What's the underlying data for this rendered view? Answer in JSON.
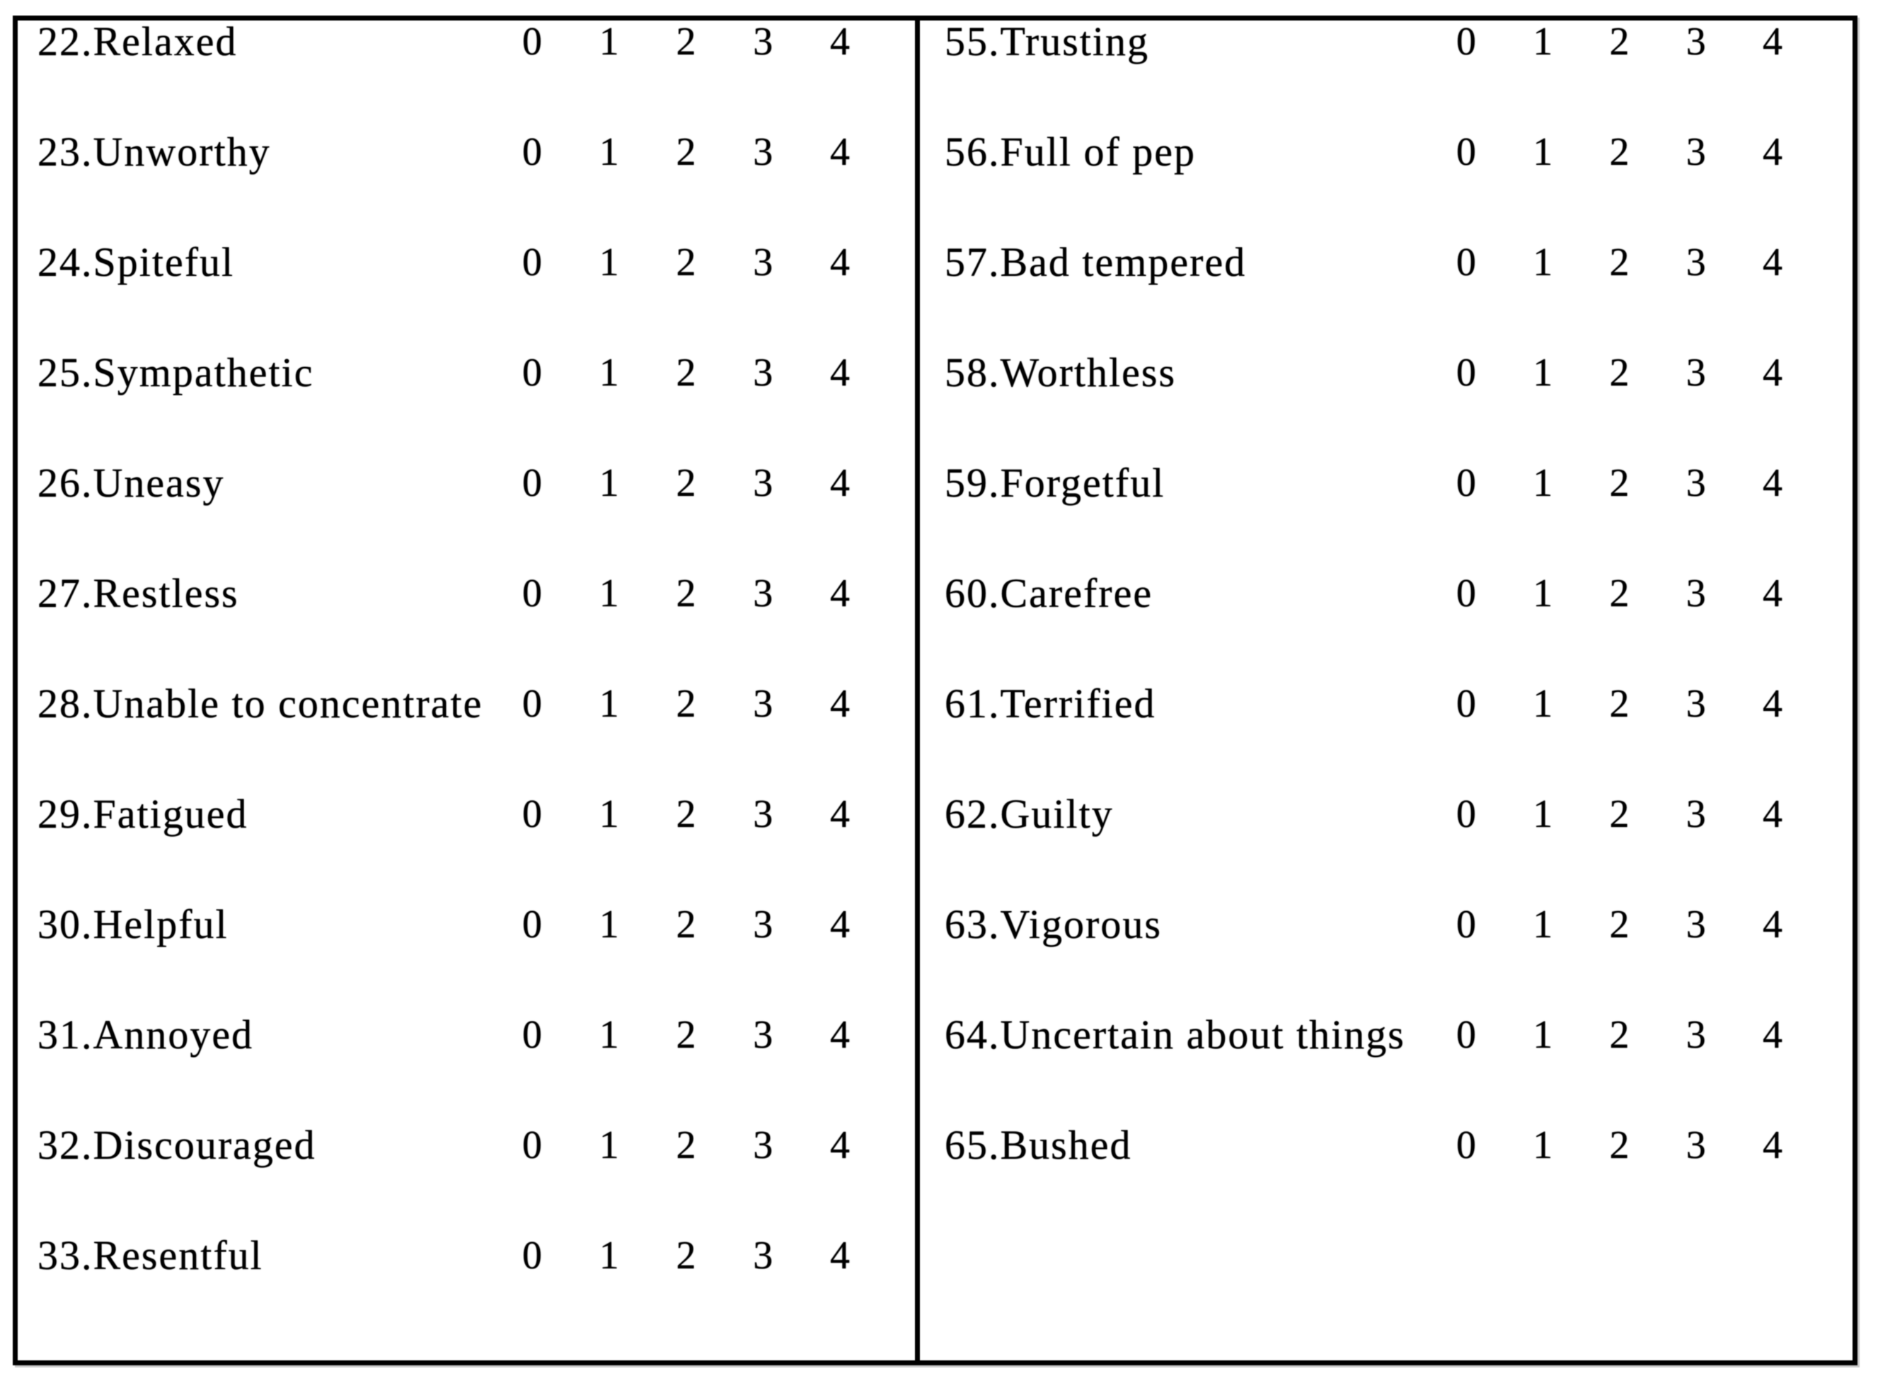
{
  "page": {
    "background_color": "#ffffff",
    "text_color": "#000000",
    "border_color": "#000000"
  },
  "scale_options": [
    "0",
    "1",
    "2",
    "3",
    "4"
  ],
  "left_column": {
    "items": [
      {
        "label": "22.Relaxed"
      },
      {
        "label": "23.Unworthy"
      },
      {
        "label": "24.Spiteful"
      },
      {
        "label": "25.Sympathetic"
      },
      {
        "label": "26.Uneasy"
      },
      {
        "label": "27.Restless"
      },
      {
        "label": "28.Unable to concentrate"
      },
      {
        "label": "29.Fatigued"
      },
      {
        "label": "30.Helpful"
      },
      {
        "label": "31.Annoyed"
      },
      {
        "label": "32.Discouraged"
      },
      {
        "label": "33.Resentful"
      }
    ]
  },
  "right_column": {
    "items": [
      {
        "label": "55.Trusting"
      },
      {
        "label": "56.Full of pep"
      },
      {
        "label": "57.Bad tempered"
      },
      {
        "label": "58.Worthless"
      },
      {
        "label": "59.Forgetful"
      },
      {
        "label": "60.Carefree"
      },
      {
        "label": "61.Terrified"
      },
      {
        "label": "62.Guilty"
      },
      {
        "label": "63.Vigorous"
      },
      {
        "label": "64.Uncertain about things"
      },
      {
        "label": "65.Bushed"
      }
    ]
  }
}
